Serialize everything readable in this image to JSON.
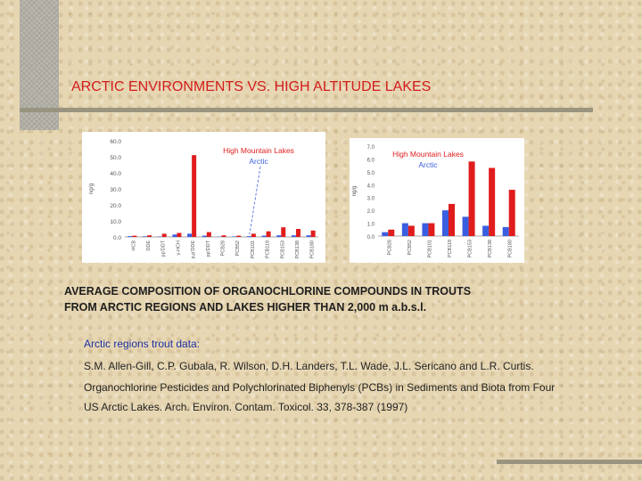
{
  "slide": {
    "title": "ARCTIC ENVIRONMENTS VS. HIGH ALTITUDE LAKES",
    "caption_line1": "AVERAGE COMPOSITION OF ORGANOCHLORINE COMPOUNDS IN TROUTS",
    "caption_line2": "FROM ARCTIC REGIONS AND LAKES HIGHER THAN 2,000 m a.b.s.l.",
    "ref_heading": "Arctic regions trout data:",
    "ref_line1": "S.M. Allen-Gill, C.P. Gubala, R. Wilson, D.H. Landers, T.L. Wade, J.L. Sericano and L.R. Curtis.",
    "ref_line2": "Organochlorine Pesticides and Polychlorinated Biphenyls (PCBs) in Sediments and Biota from Four",
    "ref_line3": "US Arctic Lakes. Arch. Environ. Contam. Toxicol. 33, 378-387 (1997)"
  },
  "colors": {
    "title": "#d41c1c",
    "high_mountain": "#e01c1c",
    "arctic": "#3a5ee0",
    "axis_text": "#555555"
  },
  "chart_data": [
    {
      "type": "bar",
      "ylabel": "ng/g",
      "ylim": [
        0,
        60
      ],
      "yticks": [
        "0.0",
        "10.0",
        "20.0",
        "30.0",
        "40.0",
        "50.0",
        "60.0"
      ],
      "categories": [
        "HCB",
        "DDE",
        "pp'DDT",
        "γ-HCH",
        "p,p'DDE",
        "pp'DDT",
        "PCB28",
        "PCB52",
        "PCB101",
        "PCB118",
        "PCB153",
        "PCB138",
        "PCB180"
      ],
      "series": [
        {
          "name": "High Mountain Lakes",
          "color": "#e01c1c",
          "values": [
            0.8,
            1.0,
            2.0,
            2.5,
            51.0,
            3.0,
            1.0,
            0.8,
            2.0,
            3.5,
            6.0,
            5.0,
            4.0
          ]
        },
        {
          "name": "Arctic",
          "color": "#3a5ee0",
          "values": [
            0.5,
            0.4,
            0.3,
            1.5,
            2.0,
            0.8,
            0.2,
            0.3,
            0.5,
            0.8,
            1.0,
            1.0,
            1.0
          ]
        }
      ],
      "legend": "top-right"
    },
    {
      "type": "bar",
      "ylabel": "ng/g",
      "ylim": [
        0,
        7
      ],
      "yticks": [
        "0.0",
        "1.0",
        "2.0",
        "3.0",
        "4.0",
        "5.0",
        "6.0",
        "7.0"
      ],
      "categories": [
        "PCB28",
        "PCB52",
        "PCB101",
        "PCB118",
        "PCB153",
        "PCB138",
        "PCB180"
      ],
      "series": [
        {
          "name": "High Mountain Lakes",
          "color": "#e01c1c",
          "values": [
            0.5,
            0.8,
            1.0,
            2.5,
            5.8,
            5.3,
            3.6
          ]
        },
        {
          "name": "Arctic",
          "color": "#3a5ee0",
          "values": [
            0.3,
            1.0,
            1.0,
            2.0,
            1.5,
            0.8,
            0.7
          ]
        }
      ],
      "legend": "top-right"
    }
  ]
}
